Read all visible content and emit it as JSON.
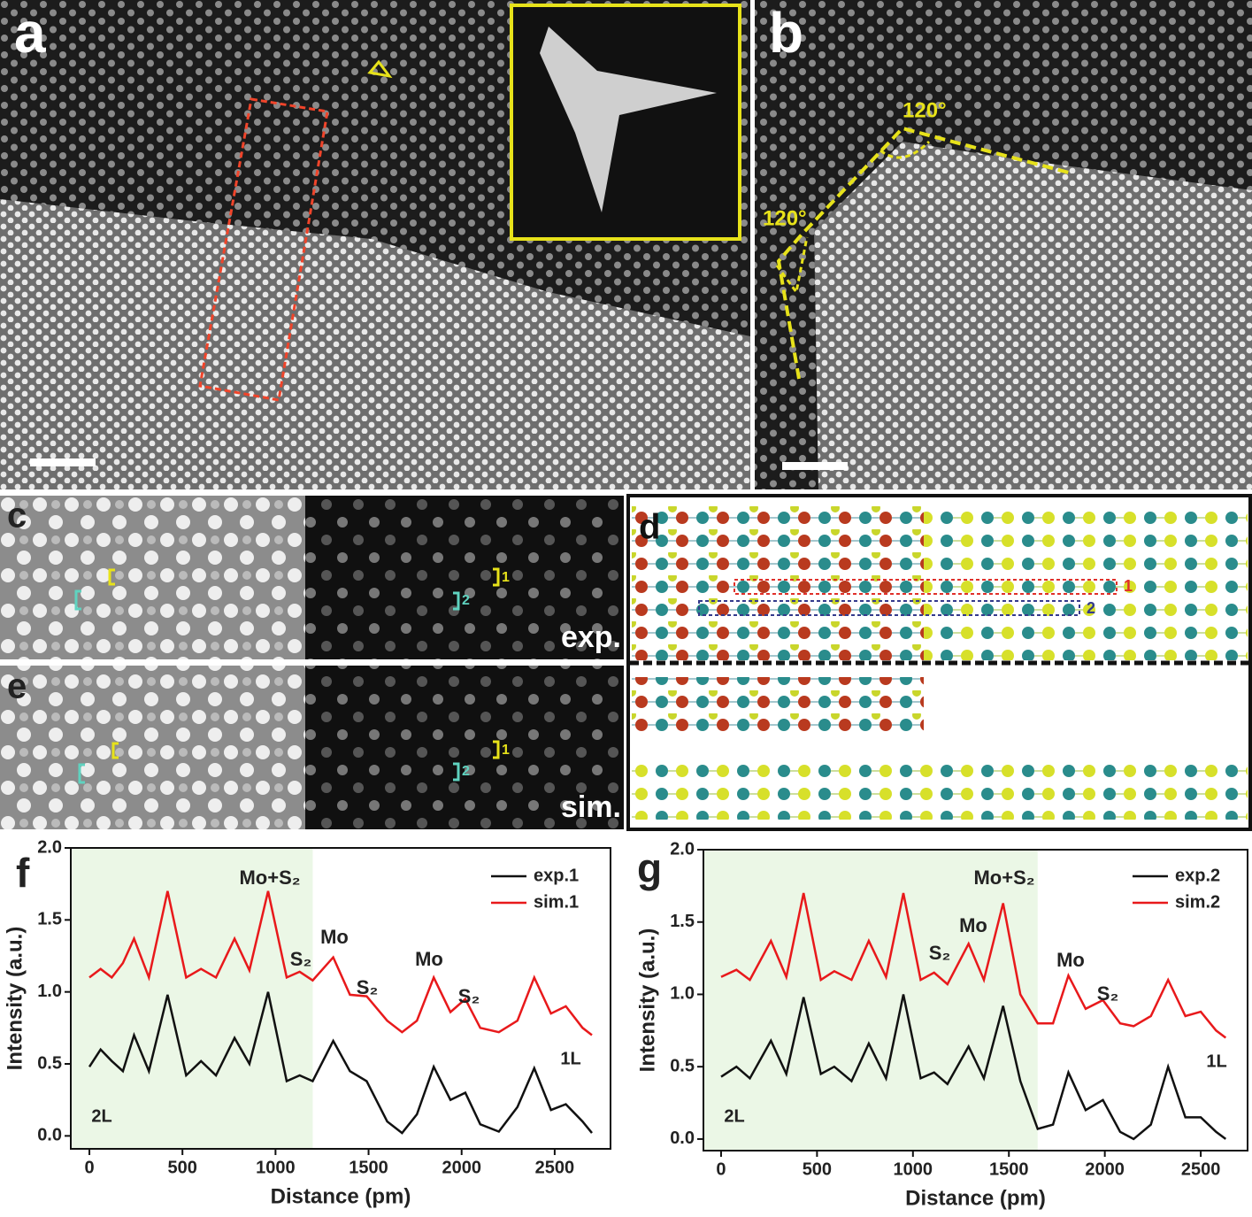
{
  "panels": {
    "a": {
      "label": "a"
    },
    "b": {
      "label": "b",
      "angles": [
        "120°",
        "120°"
      ]
    },
    "c": {
      "label": "c",
      "tag": "exp.",
      "markers": [
        "1",
        "2"
      ]
    },
    "d": {
      "label": "d",
      "markers": [
        "1",
        "2"
      ]
    },
    "e": {
      "label": "e",
      "tag": "sim.",
      "markers": [
        "1",
        "2"
      ]
    }
  },
  "chart_data": [
    {
      "type": "line",
      "panel_label": "f",
      "xlabel": "Distance (pm)",
      "ylabel": "Intensity (a.u.)",
      "xlim": [
        -100,
        2800
      ],
      "ylim": [
        -0.09,
        2.0
      ],
      "xticks": [
        0,
        500,
        1000,
        1500,
        2000,
        2500
      ],
      "yticks": [
        {
          "value": 0,
          "label": "0.0"
        },
        0.5,
        {
          "value": 1,
          "label": "1.0"
        },
        1.5,
        {
          "value": 2,
          "label": "2.0"
        }
      ],
      "highlight": [
        -100,
        1200
      ],
      "x": [
        0,
        60,
        120,
        180,
        240,
        320,
        420,
        520,
        600,
        680,
        780,
        860,
        960,
        1060,
        1130,
        1200,
        1310,
        1400,
        1490,
        1600,
        1680,
        1760,
        1850,
        1940,
        2020,
        2100,
        2200,
        2300,
        2390,
        2480,
        2560,
        2650,
        2700
      ],
      "series": [
        {
          "name": "exp.1",
          "color": "#111111",
          "values": [
            0.48,
            0.6,
            0.52,
            0.45,
            0.7,
            0.45,
            0.98,
            0.42,
            0.52,
            0.42,
            0.68,
            0.5,
            1.0,
            0.38,
            0.42,
            0.38,
            0.66,
            0.45,
            0.38,
            0.1,
            0.02,
            0.15,
            0.48,
            0.25,
            0.3,
            0.08,
            0.03,
            0.2,
            0.47,
            0.18,
            0.22,
            0.1,
            0.02
          ]
        },
        {
          "name": "sim.1",
          "color": "#e8191b",
          "values": [
            1.1,
            1.16,
            1.1,
            1.2,
            1.37,
            1.1,
            1.7,
            1.1,
            1.16,
            1.1,
            1.37,
            1.15,
            1.7,
            1.1,
            1.14,
            1.08,
            1.24,
            0.98,
            0.97,
            0.8,
            0.72,
            0.8,
            1.1,
            0.86,
            0.95,
            0.75,
            0.72,
            0.8,
            1.1,
            0.85,
            0.9,
            0.75,
            0.7
          ]
        }
      ],
      "annotations": [
        "Mo+S₂",
        "Mo",
        "S₂",
        "S₂",
        "Mo",
        "S₂"
      ],
      "region_labels": [
        "2L",
        "1L"
      ]
    },
    {
      "type": "line",
      "panel_label": "g",
      "xlabel": "Distance (pm)",
      "ylabel": "Intensity (a.u.)",
      "xlim": [
        -92,
        2744
      ],
      "ylim": [
        -0.08,
        2.0
      ],
      "xticks": [
        0,
        500,
        1000,
        1500,
        2000,
        2500
      ],
      "yticks": [
        {
          "value": 0,
          "label": "0.0"
        },
        0.5,
        {
          "value": 1,
          "label": "1.0"
        },
        1.5,
        {
          "value": 2,
          "label": "2.0"
        }
      ],
      "highlight": [
        -92,
        1650
      ],
      "x": [
        0,
        80,
        150,
        260,
        340,
        430,
        520,
        590,
        680,
        770,
        860,
        950,
        1040,
        1110,
        1180,
        1290,
        1370,
        1470,
        1560,
        1650,
        1730,
        1810,
        1900,
        1990,
        2080,
        2150,
        2240,
        2330,
        2420,
        2500,
        2580,
        2630
      ],
      "series": [
        {
          "name": "exp.2",
          "color": "#111111",
          "values": [
            0.43,
            0.5,
            0.42,
            0.68,
            0.45,
            0.98,
            0.45,
            0.5,
            0.4,
            0.66,
            0.42,
            1.0,
            0.42,
            0.46,
            0.38,
            0.64,
            0.42,
            0.92,
            0.4,
            0.07,
            0.1,
            0.46,
            0.2,
            0.27,
            0.05,
            0.0,
            0.1,
            0.5,
            0.15,
            0.15,
            0.05,
            0.0
          ]
        },
        {
          "name": "sim.2",
          "color": "#e8191b",
          "values": [
            1.12,
            1.17,
            1.1,
            1.37,
            1.12,
            1.7,
            1.1,
            1.16,
            1.1,
            1.37,
            1.12,
            1.7,
            1.1,
            1.15,
            1.07,
            1.35,
            1.1,
            1.63,
            1.0,
            0.8,
            0.8,
            1.13,
            0.9,
            0.96,
            0.8,
            0.78,
            0.85,
            1.1,
            0.85,
            0.88,
            0.75,
            0.7
          ]
        }
      ],
      "annotations": [
        "Mo+S₂",
        "Mo",
        "S₂",
        "Mo",
        "S₂"
      ],
      "region_labels": [
        "2L",
        "1L"
      ]
    }
  ]
}
